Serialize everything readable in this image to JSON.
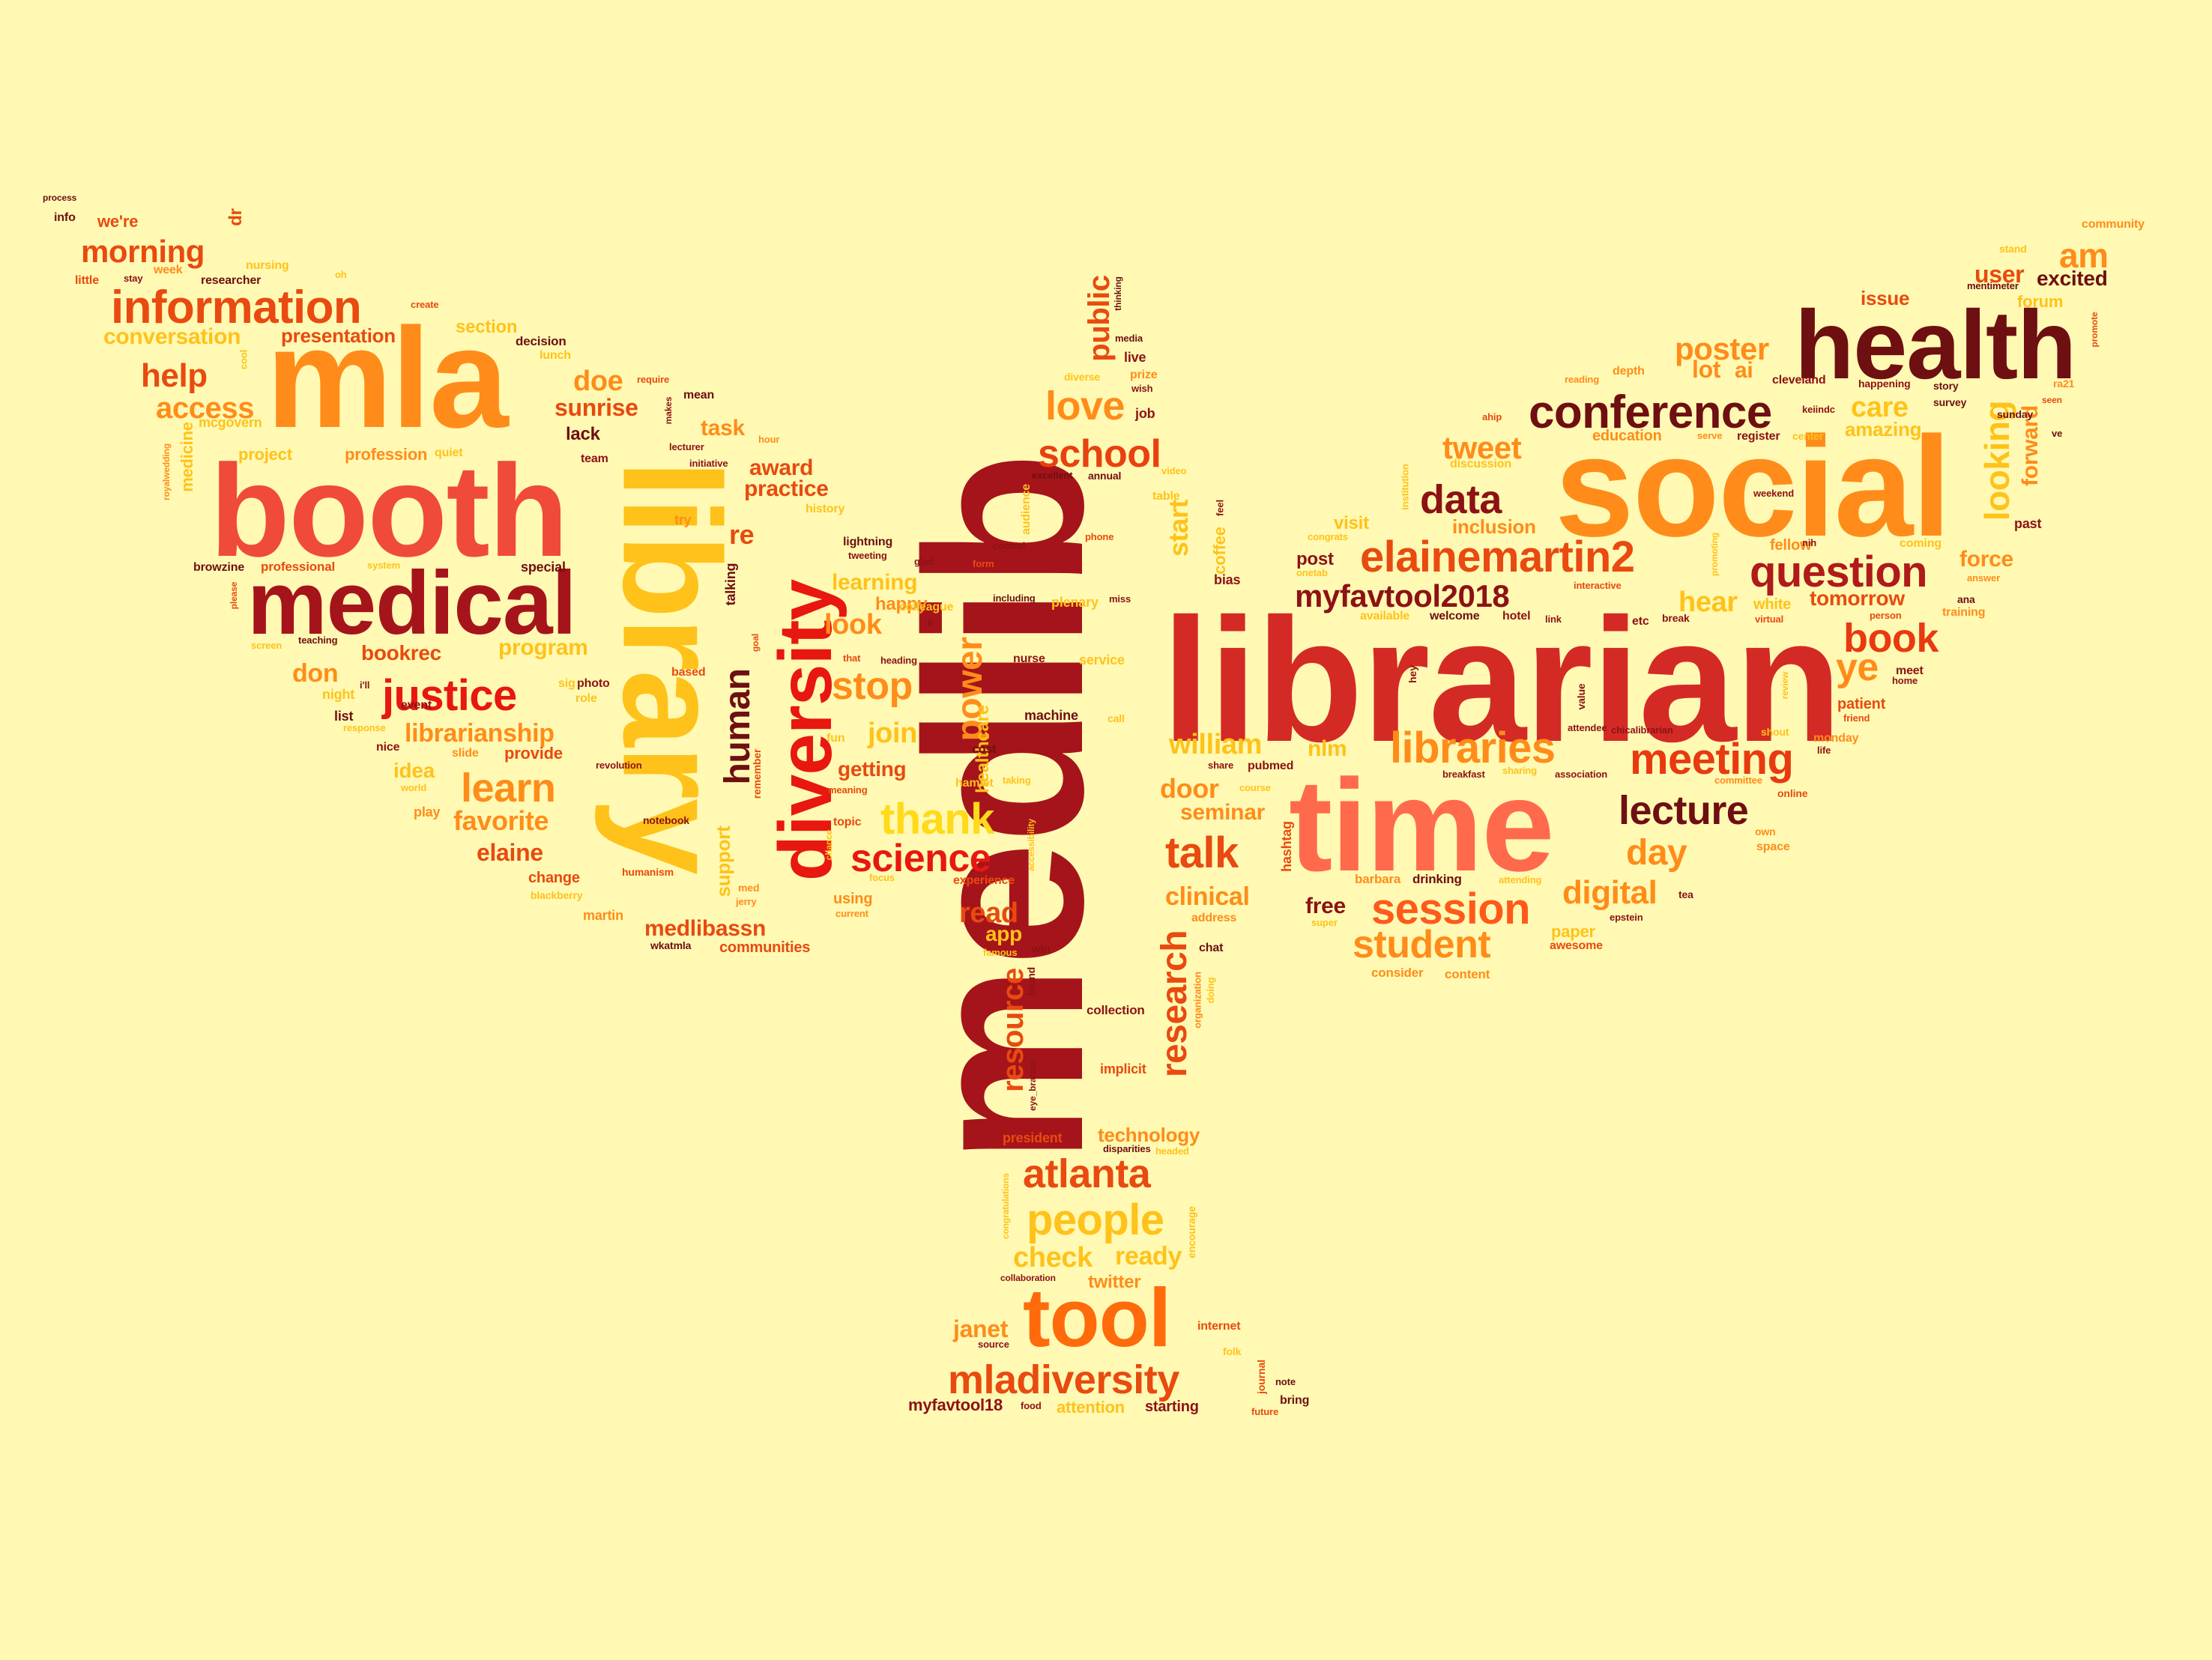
{
  "words": [
    {
      "text": "medlib",
      "color": "#A5141B"
    },
    {
      "text": "librarian",
      "color": "#D42A25"
    },
    {
      "text": "social",
      "color": "#FF8C1A"
    },
    {
      "text": "health",
      "color": "#6E0F12"
    },
    {
      "text": "mla",
      "color": "#FF8C1A"
    },
    {
      "text": "booth",
      "color": "#F04A3A"
    },
    {
      "text": "library",
      "color": "#FFC21A"
    },
    {
      "text": "medical",
      "color": "#A5141B"
    },
    {
      "text": "time",
      "color": "#FF6A4D"
    },
    {
      "text": "diversity",
      "color": "#E8170F"
    },
    {
      "text": "tool",
      "color": "#FF6A0A"
    },
    {
      "text": "conference",
      "color": "#6E0F12"
    },
    {
      "text": "information",
      "color": "#E84A10"
    },
    {
      "text": "elainemartin2",
      "color": "#E84A10"
    },
    {
      "text": "myfavtool2018",
      "color": "#8C1215"
    },
    {
      "text": "question",
      "color": "#B01A1A"
    },
    {
      "text": "libraries",
      "color": "#FF8C1A"
    },
    {
      "text": "meeting",
      "color": "#E83A10"
    },
    {
      "text": "lecture",
      "color": "#6E0F12"
    },
    {
      "text": "session",
      "color": "#FF5A1A"
    },
    {
      "text": "student",
      "color": "#FF8C1A"
    },
    {
      "text": "mladiversity",
      "color": "#E84A10"
    },
    {
      "text": "atlanta",
      "color": "#E84A10"
    },
    {
      "text": "people",
      "color": "#FFC21A"
    },
    {
      "text": "school",
      "color": "#E8410F"
    },
    {
      "text": "justice",
      "color": "#E8170F"
    },
    {
      "text": "science",
      "color": "#E8170F"
    },
    {
      "text": "thank",
      "color": "#FFDA1A"
    },
    {
      "text": "talk",
      "color": "#E84A10"
    },
    {
      "text": "research",
      "color": "#E84A10"
    },
    {
      "text": "resource",
      "color": "#E84A10"
    },
    {
      "text": "human",
      "color": "#6E0F12"
    },
    {
      "text": "learn",
      "color": "#FF8C1A"
    },
    {
      "text": "data",
      "color": "#8C1215"
    },
    {
      "text": "book",
      "color": "#E83A10"
    },
    {
      "text": "ye",
      "color": "#FF8C1A"
    },
    {
      "text": "am",
      "color": "#FF8C1A"
    },
    {
      "text": "day",
      "color": "#FF8C1A"
    },
    {
      "text": "digital",
      "color": "#FF8C1A"
    },
    {
      "text": "stop",
      "color": "#FF8C1A"
    },
    {
      "text": "power",
      "color": "#FF8C1A"
    },
    {
      "text": "love",
      "color": "#FF8C1A"
    },
    {
      "text": "help",
      "color": "#E84A10"
    },
    {
      "text": "access",
      "color": "#FF8C1A"
    },
    {
      "text": "morning",
      "color": "#E84A10"
    },
    {
      "text": "poster",
      "color": "#FF8C1A"
    },
    {
      "text": "tweet",
      "color": "#FF8C1A"
    },
    {
      "text": "looking",
      "color": "#FFC21A"
    },
    {
      "text": "william",
      "color": "#FFC21A"
    },
    {
      "text": "check",
      "color": "#FFC21A"
    },
    {
      "text": "ready",
      "color": "#FFC21A"
    },
    {
      "text": "public",
      "color": "#E84A10"
    },
    {
      "text": "start",
      "color": "#FFC21A"
    },
    {
      "text": "clinical",
      "color": "#FF8C1A"
    },
    {
      "text": "seminar",
      "color": "#FF8C1A"
    },
    {
      "text": "door",
      "color": "#FF8C1A"
    },
    {
      "text": "care",
      "color": "#FFC21A"
    },
    {
      "text": "hear",
      "color": "#FFC21A"
    },
    {
      "text": "force",
      "color": "#FF8C1A"
    },
    {
      "text": "tomorrow",
      "color": "#E84A10"
    },
    {
      "text": "excited",
      "color": "#6E0F12"
    },
    {
      "text": "user",
      "color": "#E84A10"
    },
    {
      "text": "issue",
      "color": "#E84A10"
    },
    {
      "text": "forward",
      "color": "#FF8C1A"
    },
    {
      "text": "lot",
      "color": "#FF8C1A"
    },
    {
      "text": "ai",
      "color": "#FF8C1A"
    },
    {
      "text": "amazing",
      "color": "#FFC21A"
    },
    {
      "text": "janet",
      "color": "#FF8C1A"
    },
    {
      "text": "myfavtool18",
      "color": "#8C1215"
    },
    {
      "text": "attention",
      "color": "#FFC21A"
    },
    {
      "text": "starting",
      "color": "#8C1215"
    },
    {
      "text": "twitter",
      "color": "#FF8C1A"
    },
    {
      "text": "technology",
      "color": "#FF8C1A"
    },
    {
      "text": "president",
      "color": "#E84A10"
    },
    {
      "text": "read",
      "color": "#E84A10"
    },
    {
      "text": "app",
      "color": "#FFC21A"
    },
    {
      "text": "implicit",
      "color": "#E84A10"
    },
    {
      "text": "collection",
      "color": "#8C1215"
    },
    {
      "text": "free",
      "color": "#8C1215"
    },
    {
      "text": "nlm",
      "color": "#FFC21A"
    },
    {
      "text": "fellow",
      "color": "#FF8C1A"
    },
    {
      "text": "visit",
      "color": "#FFC21A"
    },
    {
      "text": "post",
      "color": "#8C1215"
    },
    {
      "text": "inclusion",
      "color": "#FF8C1A"
    },
    {
      "text": "education",
      "color": "#FF8C1A"
    },
    {
      "text": "patient",
      "color": "#E84A10"
    },
    {
      "text": "white",
      "color": "#FFC21A"
    },
    {
      "text": "past",
      "color": "#8C1215"
    },
    {
      "text": "project",
      "color": "#FFC21A"
    },
    {
      "text": "profession",
      "color": "#FF8C1A"
    },
    {
      "text": "conversation",
      "color": "#FFC21A"
    },
    {
      "text": "presentation",
      "color": "#E84A10"
    },
    {
      "text": "section",
      "color": "#FFC21A"
    },
    {
      "text": "decision",
      "color": "#6E0F12"
    },
    {
      "text": "doe",
      "color": "#FF8C1A"
    },
    {
      "text": "sunrise",
      "color": "#E84A10"
    },
    {
      "text": "lack",
      "color": "#6E0F12"
    },
    {
      "text": "task",
      "color": "#FF8C1A"
    },
    {
      "text": "award",
      "color": "#E84A10"
    },
    {
      "text": "practice",
      "color": "#E84A10"
    },
    {
      "text": "re",
      "color": "#E84A10"
    },
    {
      "text": "learning",
      "color": "#FFC21A"
    },
    {
      "text": "look",
      "color": "#FF8C1A"
    },
    {
      "text": "happy",
      "color": "#FF8C1A"
    },
    {
      "text": "join",
      "color": "#FFC21A"
    },
    {
      "text": "getting",
      "color": "#E84A10"
    },
    {
      "text": "program",
      "color": "#FFC21A"
    },
    {
      "text": "bookrec",
      "color": "#E84A10"
    },
    {
      "text": "don",
      "color": "#FF8C1A"
    },
    {
      "text": "librarianship",
      "color": "#FF8C1A"
    },
    {
      "text": "idea",
      "color": "#FFC21A"
    },
    {
      "text": "provide",
      "color": "#E84A10"
    },
    {
      "text": "favorite",
      "color": "#FF8C1A"
    },
    {
      "text": "elaine",
      "color": "#E84A10"
    },
    {
      "text": "change",
      "color": "#E84A10"
    },
    {
      "text": "martin",
      "color": "#FF8C1A"
    },
    {
      "text": "medlibassn",
      "color": "#E84A10"
    },
    {
      "text": "communities",
      "color": "#E84A10"
    },
    {
      "text": "support",
      "color": "#FFC21A"
    },
    {
      "text": "using",
      "color": "#FF8C1A"
    },
    {
      "text": "special",
      "color": "#6E0F12"
    },
    {
      "text": "professional",
      "color": "#E84A10"
    },
    {
      "text": "healthcare",
      "color": "#FFC21A"
    },
    {
      "text": "machine",
      "color": "#6E0F12"
    },
    {
      "text": "nurse",
      "color": "#8C1215"
    },
    {
      "text": "service",
      "color": "#FFC21A"
    },
    {
      "text": "plenary",
      "color": "#FFC21A"
    },
    {
      "text": "coffee",
      "color": "#FFC21A"
    },
    {
      "text": "bias",
      "color": "#8C1215"
    },
    {
      "text": "hashtag",
      "color": "#E84A10"
    },
    {
      "text": "drinking",
      "color": "#6E0F12"
    },
    {
      "text": "barbara",
      "color": "#FF8C1A"
    },
    {
      "text": "consider",
      "color": "#FF8C1A"
    },
    {
      "text": "content",
      "color": "#FF8C1A"
    },
    {
      "text": "paper",
      "color": "#FFC21A"
    },
    {
      "text": "awesome",
      "color": "#E84A10"
    },
    {
      "text": "tea",
      "color": "#8C1215"
    },
    {
      "text": "epstein",
      "color": "#8C1215"
    },
    {
      "text": "space",
      "color": "#FF8C1A"
    },
    {
      "text": "own",
      "color": "#FF8C1A"
    },
    {
      "text": "online",
      "color": "#E84A10"
    },
    {
      "text": "monday",
      "color": "#FF8C1A"
    },
    {
      "text": "meet",
      "color": "#8C1215"
    },
    {
      "text": "cleveland",
      "color": "#8C1215"
    },
    {
      "text": "register",
      "color": "#8C1215"
    },
    {
      "text": "survey",
      "color": "#6E0F12"
    },
    {
      "text": "story",
      "color": "#6E0F12"
    },
    {
      "text": "sunday",
      "color": "#6E0F12"
    },
    {
      "text": "community",
      "color": "#FF8C1A"
    },
    {
      "text": "forum",
      "color": "#FFC21A"
    },
    {
      "text": "we're",
      "color": "#E84A10"
    },
    {
      "text": "researcher",
      "color": "#6E0F12"
    },
    {
      "text": "nursing",
      "color": "#FFC21A"
    },
    {
      "text": "lunch",
      "color": "#FFC21A"
    },
    {
      "text": "medicine",
      "color": "#FFC21A"
    },
    {
      "text": "mcgovern",
      "color": "#FFC21A"
    },
    {
      "text": "browzine",
      "color": "#6E0F12"
    },
    {
      "text": "teaching",
      "color": "#6E0F12"
    },
    {
      "text": "screen",
      "color": "#FFC21A"
    },
    {
      "text": "night",
      "color": "#FFC21A"
    },
    {
      "text": "list",
      "color": "#6E0F12"
    },
    {
      "text": "event",
      "color": "#8C1215"
    },
    {
      "text": "nice",
      "color": "#8C1215"
    },
    {
      "text": "play",
      "color": "#FF8C1A"
    },
    {
      "text": "notebook",
      "color": "#8C1215"
    },
    {
      "text": "wkatmla",
      "color": "#6E0F12"
    },
    {
      "text": "humanism",
      "color": "#E84A10"
    },
    {
      "text": "blackberry",
      "color": "#FFC21A"
    },
    {
      "text": "photo",
      "color": "#8C1215"
    },
    {
      "text": "role",
      "color": "#FFC21A"
    },
    {
      "text": "slide",
      "color": "#FF8C1A"
    },
    {
      "text": "revolution",
      "color": "#8C1215"
    },
    {
      "text": "world",
      "color": "#FFC21A"
    },
    {
      "text": "team",
      "color": "#8C1215"
    },
    {
      "text": "quiet",
      "color": "#FFC21A"
    },
    {
      "text": "require",
      "color": "#E84A10"
    },
    {
      "text": "mean",
      "color": "#6E0F12"
    },
    {
      "text": "lecturer",
      "color": "#8C1215"
    },
    {
      "text": "initiative",
      "color": "#8C1215"
    },
    {
      "text": "hour",
      "color": "#FF8C1A"
    },
    {
      "text": "history",
      "color": "#FFC21A"
    },
    {
      "text": "try",
      "color": "#FF8C1A"
    },
    {
      "text": "lightning",
      "color": "#6E0F12"
    },
    {
      "text": "tweeting",
      "color": "#8C1215"
    },
    {
      "text": "glad",
      "color": "#8C1215"
    },
    {
      "text": "colleague",
      "color": "#FFC21A"
    },
    {
      "text": "heading",
      "color": "#8C1215"
    },
    {
      "text": "based",
      "color": "#E84A10"
    },
    {
      "text": "fun",
      "color": "#FFC21A"
    },
    {
      "text": "cost",
      "color": "#6E0F12"
    },
    {
      "text": "hamlet",
      "color": "#FFC21A"
    },
    {
      "text": "taking",
      "color": "#FFC21A"
    },
    {
      "text": "topic",
      "color": "#E84A10"
    },
    {
      "text": "experience",
      "color": "#E84A10"
    },
    {
      "text": "famous",
      "color": "#FFC21A"
    },
    {
      "text": "win",
      "color": "#8C1215"
    },
    {
      "text": "talking",
      "color": "#6E0F12"
    },
    {
      "text": "meaning",
      "color": "#E84A10"
    },
    {
      "text": "remember",
      "color": "#E84A10"
    },
    {
      "text": "current",
      "color": "#FF8C1A"
    },
    {
      "text": "focus",
      "color": "#FFC21A"
    },
    {
      "text": "chance",
      "color": "#FFC21A"
    },
    {
      "text": "audience",
      "color": "#FFC21A"
    },
    {
      "text": "control",
      "color": "#8C1215"
    },
    {
      "text": "form",
      "color": "#E84A10"
    },
    {
      "text": "including",
      "color": "#6E0F12"
    },
    {
      "text": "excellent",
      "color": "#6E0F12"
    },
    {
      "text": "annual",
      "color": "#6E0F12"
    },
    {
      "text": "miss",
      "color": "#8C1215"
    },
    {
      "text": "phone",
      "color": "#E84A10"
    },
    {
      "text": "table",
      "color": "#FFC21A"
    },
    {
      "text": "video",
      "color": "#FFC21A"
    },
    {
      "text": "job",
      "color": "#8C1215"
    },
    {
      "text": "diverse",
      "color": "#FFC21A"
    },
    {
      "text": "prize",
      "color": "#FF8C1A"
    },
    {
      "text": "wish",
      "color": "#8C1215"
    },
    {
      "text": "live",
      "color": "#8C1215"
    },
    {
      "text": "media",
      "color": "#6E0F12"
    },
    {
      "text": "thinking",
      "color": "#6E0F12"
    },
    {
      "text": "call",
      "color": "#FFC21A"
    },
    {
      "text": "course",
      "color": "#FFC21A"
    },
    {
      "text": "share",
      "color": "#8C1215"
    },
    {
      "text": "pubmed",
      "color": "#8C1215"
    },
    {
      "text": "chat",
      "color": "#6E0F12"
    },
    {
      "text": "address",
      "color": "#FF8C1A"
    },
    {
      "text": "organization",
      "color": "#FF8C1A"
    },
    {
      "text": "doing",
      "color": "#FFC21A"
    },
    {
      "text": "feel",
      "color": "#8C1215"
    },
    {
      "text": "welcome",
      "color": "#6E0F12"
    },
    {
      "text": "available",
      "color": "#FFC21A"
    },
    {
      "text": "onetab",
      "color": "#FFC21A"
    },
    {
      "text": "congrats",
      "color": "#FFC21A"
    },
    {
      "text": "hotel",
      "color": "#8C1215"
    },
    {
      "text": "link",
      "color": "#8C1215"
    },
    {
      "text": "etc",
      "color": "#8C1215"
    },
    {
      "text": "break",
      "color": "#8C1215"
    },
    {
      "text": "institution",
      "color": "#FFC21A"
    },
    {
      "text": "promoting",
      "color": "#FFC21A"
    },
    {
      "text": "interactive",
      "color": "#E84A10"
    },
    {
      "text": "virtual",
      "color": "#E84A10"
    },
    {
      "text": "person",
      "color": "#E84A10"
    },
    {
      "text": "training",
      "color": "#FF8C1A"
    },
    {
      "text": "answer",
      "color": "#FF8C1A"
    },
    {
      "text": "ana",
      "color": "#6E0F12"
    },
    {
      "text": "home",
      "color": "#8C1215"
    },
    {
      "text": "friend",
      "color": "#E84A10"
    },
    {
      "text": "review",
      "color": "#FFC21A"
    },
    {
      "text": "shout",
      "color": "#FFC21A"
    },
    {
      "text": "life",
      "color": "#8C1215"
    },
    {
      "text": "committee",
      "color": "#FF8C1A"
    },
    {
      "text": "association",
      "color": "#8C1215"
    },
    {
      "text": "sharing",
      "color": "#FFC21A"
    },
    {
      "text": "breakfast",
      "color": "#8C1215"
    },
    {
      "text": "chicalibrarian",
      "color": "#8C1215"
    },
    {
      "text": "attendee",
      "color": "#8C1215"
    },
    {
      "text": "value",
      "color": "#8C1215"
    },
    {
      "text": "hey",
      "color": "#8C1215"
    },
    {
      "text": "discussion",
      "color": "#FFC21A"
    },
    {
      "text": "ahip",
      "color": "#E84A10"
    },
    {
      "text": "reading",
      "color": "#FF8C1A"
    },
    {
      "text": "depth",
      "color": "#FF8C1A"
    },
    {
      "text": "serve",
      "color": "#FF8C1A"
    },
    {
      "text": "center",
      "color": "#FFC21A"
    },
    {
      "text": "keiindc",
      "color": "#8C1215"
    },
    {
      "text": "happening",
      "color": "#8C1215"
    },
    {
      "text": "weekend",
      "color": "#8C1215"
    },
    {
      "text": "nih",
      "color": "#8C1215"
    },
    {
      "text": "coming",
      "color": "#FFC21A"
    },
    {
      "text": "ve",
      "color": "#6E0F12"
    },
    {
      "text": "ra21",
      "color": "#FF8C1A"
    },
    {
      "text": "seen",
      "color": "#E84A10"
    },
    {
      "text": "promote",
      "color": "#E84A10"
    },
    {
      "text": "mentimeter",
      "color": "#6E0F12"
    },
    {
      "text": "stand",
      "color": "#FFC21A"
    },
    {
      "text": "process",
      "color": "#6E0F12"
    },
    {
      "text": "info",
      "color": "#6E0F12"
    },
    {
      "text": "dr",
      "color": "#E84A10"
    },
    {
      "text": "little",
      "color": "#E84A10"
    },
    {
      "text": "stay",
      "color": "#8C1215"
    },
    {
      "text": "week",
      "color": "#FF8C1A"
    },
    {
      "text": "oh",
      "color": "#FFC21A"
    },
    {
      "text": "create",
      "color": "#E84A10"
    },
    {
      "text": "cool",
      "color": "#FFC21A"
    },
    {
      "text": "royalwedding",
      "color": "#FF8C1A"
    },
    {
      "text": "system",
      "color": "#FFC21A"
    },
    {
      "text": "please",
      "color": "#E84A10"
    },
    {
      "text": "i'll",
      "color": "#8C1215"
    },
    {
      "text": "response",
      "color": "#FFC21A"
    },
    {
      "text": "sig",
      "color": "#FFC21A"
    },
    {
      "text": "makes",
      "color": "#8C1215"
    },
    {
      "text": "goal",
      "color": "#E84A10"
    },
    {
      "text": "li",
      "color": "#8C1215"
    },
    {
      "text": "that",
      "color": "#E84A10"
    },
    {
      "text": "med",
      "color": "#FF8C1A"
    },
    {
      "text": "jerry",
      "color": "#FF8C1A"
    },
    {
      "text": "accessibility",
      "color": "#FFC21A"
    },
    {
      "text": "congratulations",
      "color": "#FFC21A"
    },
    {
      "text": "eye_brarian",
      "color": "#8C1215"
    },
    {
      "text": "found",
      "color": "#8C1215"
    },
    {
      "text": "disparities",
      "color": "#6E0F12"
    },
    {
      "text": "headed",
      "color": "#FFC21A"
    },
    {
      "text": "collaboration",
      "color": "#8C1215"
    },
    {
      "text": "source",
      "color": "#8C1215"
    },
    {
      "text": "food",
      "color": "#8C1215"
    },
    {
      "text": "encourage",
      "color": "#FFC21A"
    },
    {
      "text": "internet",
      "color": "#E84A10"
    },
    {
      "text": "folk",
      "color": "#FFC21A"
    },
    {
      "text": "journal",
      "color": "#E84A10"
    },
    {
      "text": "note",
      "color": "#6E0F12"
    },
    {
      "text": "bring",
      "color": "#6E0F12"
    },
    {
      "text": "future",
      "color": "#E84A10"
    },
    {
      "text": "super",
      "color": "#FFC21A"
    },
    {
      "text": "attending",
      "color": "#FFC21A"
    }
  ]
}
